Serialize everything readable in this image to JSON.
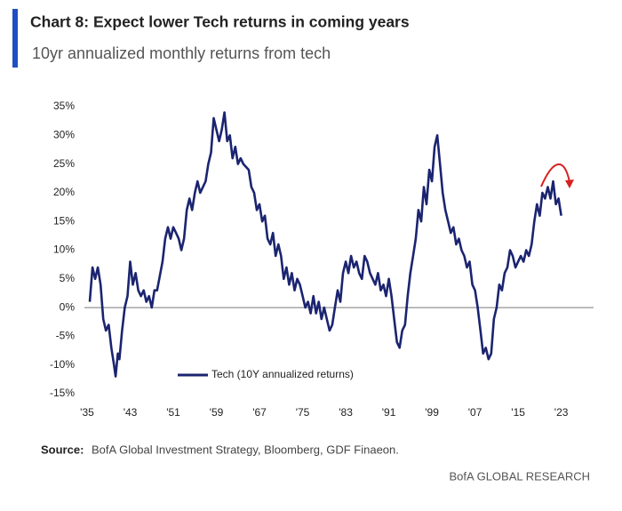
{
  "chart_data": {
    "type": "line",
    "title": "Chart 8: Expect lower Tech returns in coming years",
    "subtitle": "10yr annualized monthly returns from tech",
    "source_label": "Source:",
    "source": "BofA Global Investment Strategy, Bloomberg, GDF Finaeon.",
    "footer": "BofA GLOBAL RESEARCH",
    "xlim": [
      1935,
      2029
    ],
    "ylim": [
      -15,
      35
    ],
    "xticks": [
      {
        "value": 1935,
        "label": "'35"
      },
      {
        "value": 1943,
        "label": "'43"
      },
      {
        "value": 1951,
        "label": "'51"
      },
      {
        "value": 1959,
        "label": "'59"
      },
      {
        "value": 1967,
        "label": "'67"
      },
      {
        "value": 1975,
        "label": "'75"
      },
      {
        "value": 1983,
        "label": "'83"
      },
      {
        "value": 1991,
        "label": "'91"
      },
      {
        "value": 1999,
        "label": "'99"
      },
      {
        "value": 2007,
        "label": "'07"
      },
      {
        "value": 2015,
        "label": "'15"
      },
      {
        "value": 2023,
        "label": "'23"
      }
    ],
    "yticks": [
      {
        "value": 35,
        "label": "35%"
      },
      {
        "value": 30,
        "label": "30%"
      },
      {
        "value": 25,
        "label": "25%"
      },
      {
        "value": 20,
        "label": "20%"
      },
      {
        "value": 15,
        "label": "15%"
      },
      {
        "value": 10,
        "label": "10%"
      },
      {
        "value": 5,
        "label": "5%"
      },
      {
        "value": 0,
        "label": "0%"
      },
      {
        "value": -5,
        "label": "-5%"
      },
      {
        "value": -10,
        "label": "-10%"
      },
      {
        "value": -15,
        "label": "-15%"
      }
    ],
    "x": [
      1935.5,
      1936,
      1936.5,
      1937,
      1937.5,
      1938,
      1938.5,
      1939,
      1939.5,
      1940,
      1940.3,
      1940.7,
      1941,
      1941.5,
      1942,
      1942.5,
      1943,
      1943.5,
      1944,
      1944.5,
      1945,
      1945.5,
      1946,
      1946.5,
      1947,
      1947.5,
      1948,
      1949,
      1949.5,
      1950,
      1950.5,
      1951,
      1951.5,
      1952,
      1952.5,
      1953,
      1953.5,
      1954,
      1954.5,
      1955,
      1955.5,
      1956,
      1957,
      1957.5,
      1958,
      1958.5,
      1959,
      1959.5,
      1960,
      1960.5,
      1961,
      1961.5,
      1962,
      1962.5,
      1963,
      1963.5,
      1964,
      1965,
      1965.5,
      1966,
      1966.5,
      1967,
      1967.5,
      1968,
      1968.5,
      1969,
      1969.5,
      1970,
      1970.5,
      1971,
      1971.5,
      1972,
      1972.5,
      1973,
      1973.5,
      1974,
      1974.5,
      1975,
      1975.5,
      1976,
      1976.5,
      1977,
      1977.5,
      1978,
      1978.5,
      1979,
      1979.5,
      1980,
      1980.5,
      1981,
      1981.5,
      1982,
      1982.5,
      1983,
      1983.5,
      1984,
      1984.5,
      1985,
      1985.5,
      1986,
      1986.5,
      1987,
      1987.5,
      1988,
      1988.5,
      1989,
      1989.5,
      1990,
      1990.5,
      1991,
      1991.5,
      1992,
      1992.5,
      1993,
      1993.5,
      1994,
      1994.5,
      1995,
      1995.5,
      1996,
      1996.5,
      1997,
      1997.5,
      1998,
      1998.5,
      1999,
      1999.5,
      2000,
      2000.5,
      2001,
      2001.5,
      2002,
      2002.5,
      2003,
      2003.5,
      2004,
      2004.5,
      2005,
      2005.5,
      2006,
      2006.5,
      2007,
      2007.5,
      2008,
      2008.5,
      2009,
      2009.5,
      2010,
      2010.5,
      2011,
      2011.5,
      2012,
      2012.5,
      2013,
      2013.5,
      2014,
      2014.5,
      2015,
      2015.5,
      2016,
      2016.5,
      2017,
      2017.5,
      2018,
      2018.5,
      2019,
      2019.5,
      2020,
      2020.5,
      2021,
      2021.5,
      2022,
      2022.5,
      2023
    ],
    "series": [
      {
        "name": "Tech (10Y annualized returns)",
        "color": "#1b2470",
        "values": [
          1,
          7,
          5,
          7,
          4,
          -2,
          -4,
          -3,
          -7,
          -10,
          -12,
          -8,
          -9,
          -4,
          0,
          2,
          8,
          4,
          6,
          3,
          2,
          3,
          1,
          2,
          0,
          3,
          3,
          8,
          12,
          14,
          12,
          14,
          13,
          12,
          10,
          12,
          17,
          19,
          17,
          20,
          22,
          20,
          22,
          25,
          27,
          33,
          31,
          29,
          31,
          34,
          29,
          30,
          26,
          28,
          25,
          26,
          25,
          24,
          21,
          20,
          17,
          18,
          15,
          16,
          12,
          11,
          13,
          9,
          11,
          9,
          5,
          7,
          4,
          6,
          3,
          5,
          4,
          2,
          0,
          1,
          -1,
          2,
          -1,
          1,
          -2,
          0,
          -2,
          -4,
          -3,
          0,
          3,
          1,
          6,
          8,
          6,
          9,
          7,
          8,
          6,
          5,
          9,
          8,
          6,
          5,
          4,
          6,
          3,
          4,
          2,
          5,
          2,
          -2,
          -6,
          -7,
          -4,
          -3,
          2,
          6,
          9,
          12,
          17,
          15,
          21,
          18,
          24,
          22,
          28,
          30,
          25,
          20,
          17,
          15,
          13,
          14,
          11,
          12,
          10,
          9,
          7,
          8,
          4,
          3,
          0,
          -4,
          -8,
          -7,
          -9,
          -8,
          -2,
          0,
          4,
          3,
          6,
          7,
          10,
          9,
          7,
          8,
          9,
          8,
          10,
          9,
          11,
          15,
          18,
          16,
          20,
          19,
          21,
          19,
          22,
          18,
          19,
          16
        ]
      }
    ]
  }
}
